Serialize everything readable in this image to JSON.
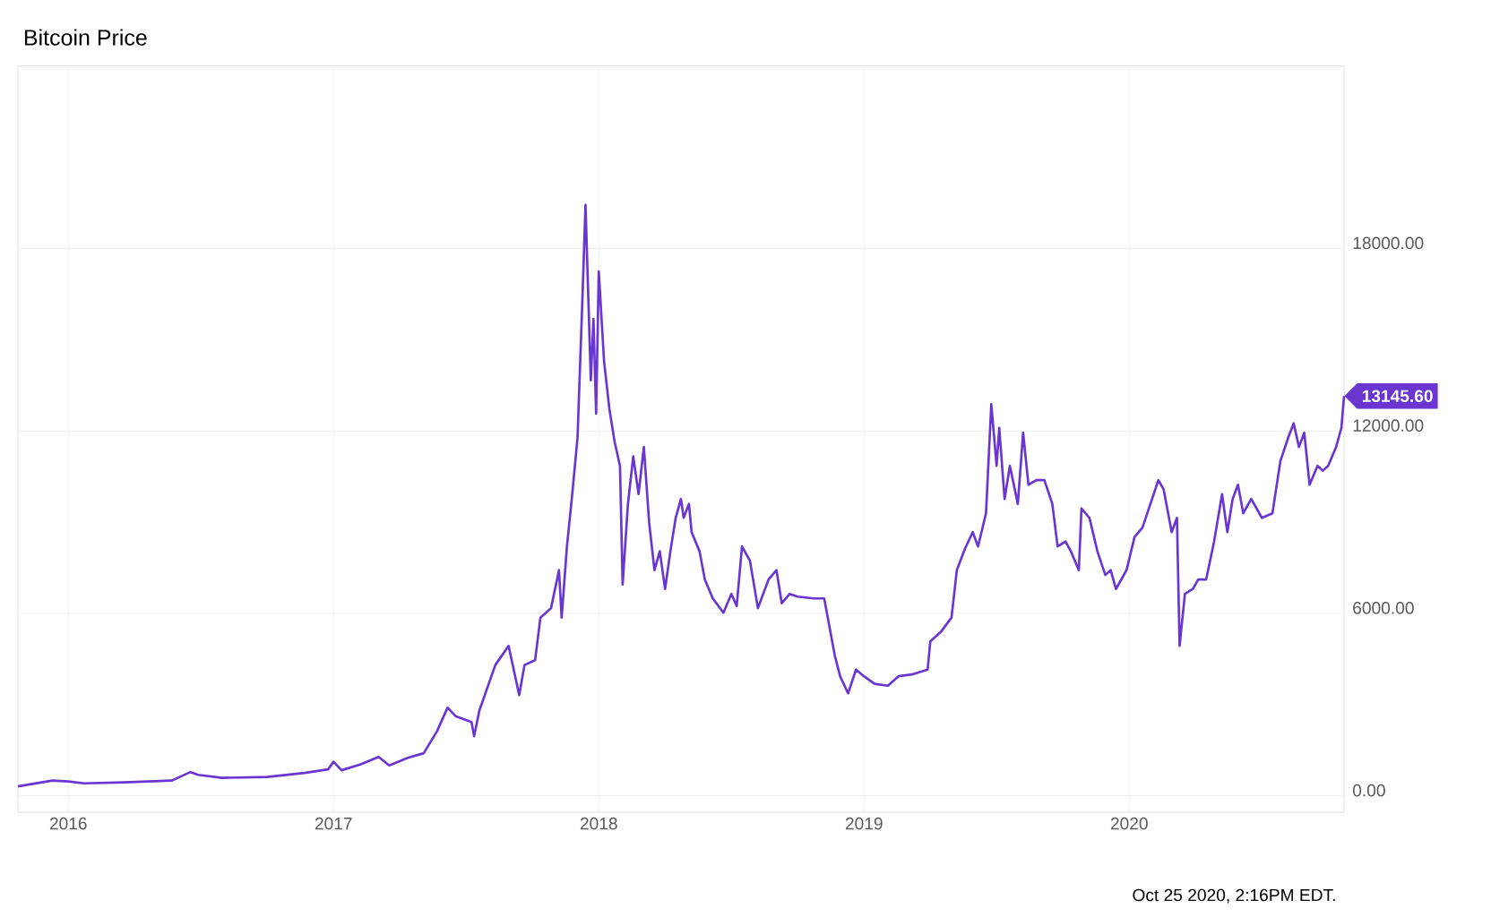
{
  "chart_data": {
    "type": "line",
    "title": "Bitcoin Price",
    "x": [
      2015.81,
      2015.85,
      2015.94,
      2016.0,
      2016.06,
      2016.21,
      2016.39,
      2016.42,
      2016.46,
      2016.49,
      2016.58,
      2016.75,
      2016.89,
      2016.98,
      2017.0,
      2017.03,
      2017.1,
      2017.17,
      2017.21,
      2017.28,
      2017.34,
      2017.39,
      2017.43,
      2017.46,
      2017.52,
      2017.53,
      2017.55,
      2017.61,
      2017.66,
      2017.7,
      2017.72,
      2017.76,
      2017.78,
      2017.82,
      2017.85,
      2017.86,
      2017.88,
      2017.9,
      2017.92,
      2017.94,
      2017.95,
      2017.97,
      2017.98,
      2017.99,
      2018.0,
      2018.02,
      2018.04,
      2018.06,
      2018.08,
      2018.09,
      2018.11,
      2018.13,
      2018.15,
      2018.17,
      2018.19,
      2018.21,
      2018.23,
      2018.25,
      2018.27,
      2018.29,
      2018.31,
      2018.32,
      2018.34,
      2018.35,
      2018.38,
      2018.4,
      2018.43,
      2018.47,
      2018.5,
      2018.52,
      2018.54,
      2018.57,
      2018.6,
      2018.64,
      2018.67,
      2018.69,
      2018.72,
      2018.75,
      2018.81,
      2018.85,
      2018.87,
      2018.89,
      2018.91,
      2018.94,
      2018.97,
      2019.0,
      2019.04,
      2019.09,
      2019.13,
      2019.18,
      2019.24,
      2019.25,
      2019.29,
      2019.33,
      2019.35,
      2019.38,
      2019.41,
      2019.43,
      2019.46,
      2019.48,
      2019.5,
      2019.51,
      2019.53,
      2019.55,
      2019.58,
      2019.6,
      2019.62,
      2019.65,
      2019.68,
      2019.71,
      2019.73,
      2019.76,
      2019.78,
      2019.81,
      2019.82,
      2019.85,
      2019.88,
      2019.91,
      2019.93,
      2019.95,
      2019.99,
      2020.02,
      2020.05,
      2020.08,
      2020.11,
      2020.13,
      2020.16,
      2020.18,
      2020.19,
      2020.21,
      2020.24,
      2020.26,
      2020.29,
      2020.32,
      2020.35,
      2020.37,
      2020.39,
      2020.41,
      2020.43,
      2020.46,
      2020.5,
      2020.54,
      2020.57,
      2020.6,
      2020.62,
      2020.64,
      2020.66,
      2020.68,
      2020.71,
      2020.73,
      2020.75,
      2020.78,
      2020.8,
      2020.81
    ],
    "series": [
      {
        "color": "#6a35d0",
        "values": [
          310,
          370,
          500,
          470,
          410,
          440,
          500,
          620,
          780,
          690,
          590,
          620,
          750,
          870,
          1120,
          840,
          1030,
          1280,
          1000,
          1250,
          1400,
          2120,
          2900,
          2620,
          2430,
          1960,
          2810,
          4300,
          4930,
          3310,
          4300,
          4460,
          5860,
          6170,
          7420,
          5860,
          8200,
          9920,
          11790,
          16770,
          19430,
          13660,
          15680,
          12570,
          17240,
          14280,
          12720,
          11630,
          10850,
          6950,
          9600,
          11160,
          9920,
          11470,
          8980,
          7420,
          8040,
          6800,
          8040,
          9140,
          9760,
          9140,
          9600,
          8670,
          8040,
          7110,
          6490,
          6020,
          6640,
          6240,
          8200,
          7730,
          6170,
          7110,
          7420,
          6330,
          6640,
          6550,
          6490,
          6490,
          5550,
          4610,
          3930,
          3370,
          4150,
          3930,
          3680,
          3620,
          3930,
          3990,
          4150,
          5080,
          5390,
          5860,
          7420,
          8110,
          8670,
          8200,
          9290,
          12880,
          10850,
          12100,
          9760,
          10850,
          9600,
          11940,
          10230,
          10380,
          10380,
          9600,
          8200,
          8360,
          8040,
          7420,
          9450,
          9140,
          8040,
          7260,
          7420,
          6800,
          7420,
          8510,
          8820,
          9600,
          10380,
          10070,
          8670,
          9140,
          4930,
          6640,
          6800,
          7110,
          7110,
          8360,
          9920,
          8670,
          9760,
          10230,
          9290,
          9760,
          9140,
          9290,
          11010,
          11790,
          12250,
          11470,
          11940,
          10230,
          10850,
          10690,
          10850,
          11470,
          12100,
          13145.6
        ]
      }
    ],
    "xlim": [
      2015.81,
      2020.81
    ],
    "xticks": [
      2016,
      2017,
      2018,
      2019,
      2020
    ],
    "ylim": [
      -540,
      24000
    ],
    "yticks": [
      {
        "value": 0,
        "label": "0.00"
      },
      {
        "value": 6000,
        "label": "6000.00"
      },
      {
        "value": 12000,
        "label": "12000.00"
      },
      {
        "value": 18000,
        "label": "18000.00"
      }
    ],
    "grid": true,
    "annotations": [
      {
        "text": "13145.60",
        "x": 2020.81,
        "y": 13145.6
      },
      "Oct 25 2020, 2:16PM EDT."
    ]
  }
}
